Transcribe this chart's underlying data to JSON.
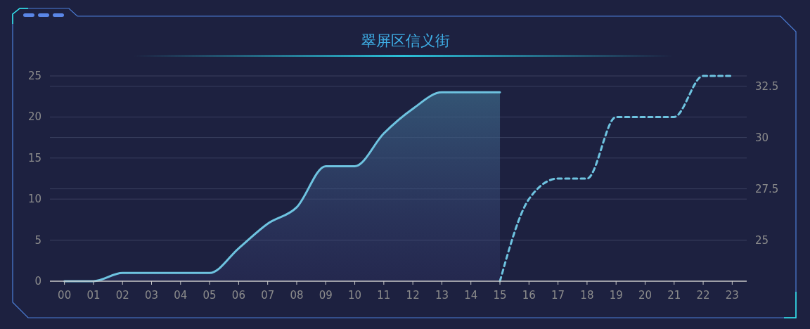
{
  "chart_data": {
    "type": "line",
    "title": "翠屏区信义街",
    "categories": [
      "00",
      "01",
      "02",
      "03",
      "04",
      "05",
      "06",
      "07",
      "08",
      "09",
      "10",
      "11",
      "12",
      "13",
      "14",
      "15",
      "16",
      "17",
      "18",
      "19",
      "20",
      "21",
      "22",
      "23"
    ],
    "series": [
      {
        "type": "area",
        "color": "#6ec3e0",
        "line_style": "solid",
        "values": [
          0,
          0,
          1,
          1,
          1,
          1,
          4,
          7,
          9,
          14,
          14,
          18,
          21,
          23,
          23,
          23,
          null,
          null,
          null,
          null,
          null,
          null,
          null,
          null
        ]
      },
      {
        "color": "#6ec3e0",
        "line_style": "dashed",
        "axis": "y2",
        "values": [
          null,
          null,
          null,
          null,
          null,
          null,
          null,
          null,
          null,
          null,
          null,
          null,
          null,
          null,
          null,
          23,
          27,
          28,
          28,
          31,
          31,
          31,
          33,
          33
        ]
      }
    ],
    "ylim": [
      0,
      25
    ],
    "yticks": [
      0,
      5,
      10,
      15,
      20,
      25
    ],
    "y2lim": [
      23,
      33
    ],
    "y2ticks": [
      25,
      27.5,
      30,
      32.5
    ],
    "grid": true,
    "marker": "none"
  }
}
